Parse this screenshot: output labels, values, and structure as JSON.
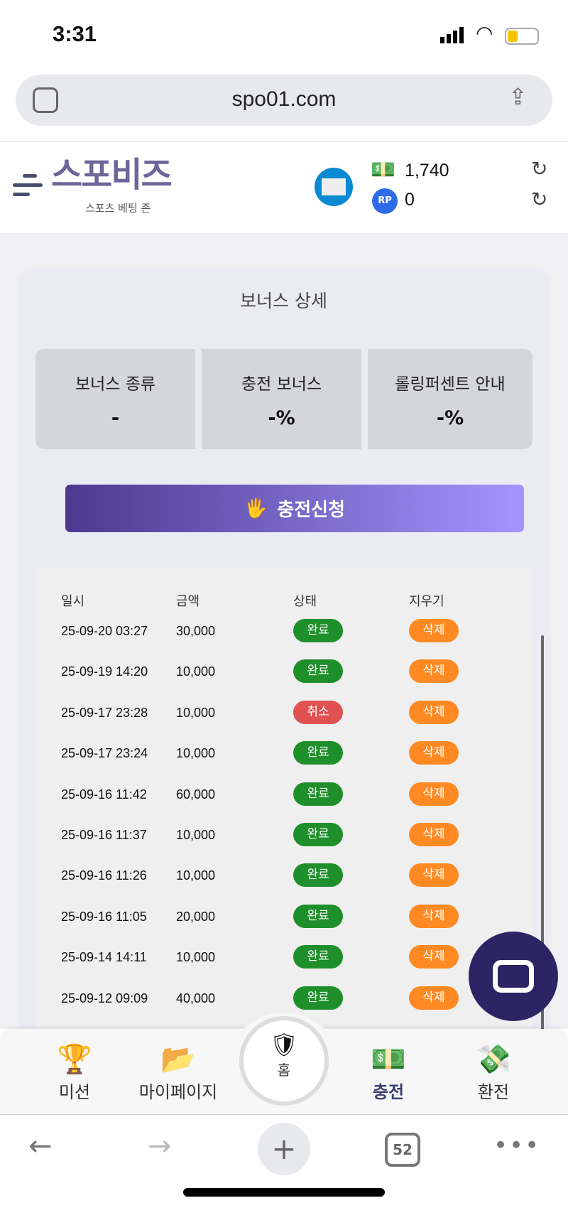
{
  "status_bar": {
    "time": "3:31"
  },
  "browser": {
    "url": "spo01.com",
    "tab_count": "52"
  },
  "header": {
    "logo_main": "스포비즈",
    "logo_sub": "스포츠 베팅 존",
    "money": "1,740",
    "rp": "0",
    "rp_badge": "RP"
  },
  "bonus": {
    "title": "보너스 상세",
    "boxes": [
      {
        "label": "보너스 종류",
        "value": "-"
      },
      {
        "label": "충전 보너스",
        "value": "-%"
      },
      {
        "label": "롤링퍼센트 안내",
        "value": "-%"
      }
    ]
  },
  "charge_button": "충전신청",
  "table": {
    "headers": [
      "일시",
      "금액",
      "상태",
      "지우기"
    ],
    "rows": [
      {
        "date": "25-09-20 03:27",
        "amount": "30,000",
        "status": "완료",
        "delete": "삭제"
      },
      {
        "date": "25-09-19 14:20",
        "amount": "10,000",
        "status": "완료",
        "delete": "삭제"
      },
      {
        "date": "25-09-17 23:28",
        "amount": "10,000",
        "status": "취소",
        "delete": "삭제"
      },
      {
        "date": "25-09-17 23:24",
        "amount": "10,000",
        "status": "완료",
        "delete": "삭제"
      },
      {
        "date": "25-09-16 11:42",
        "amount": "60,000",
        "status": "완료",
        "delete": "삭제"
      },
      {
        "date": "25-09-16 11:37",
        "amount": "10,000",
        "status": "완료",
        "delete": "삭제"
      },
      {
        "date": "25-09-16 11:26",
        "amount": "10,000",
        "status": "완료",
        "delete": "삭제"
      },
      {
        "date": "25-09-16 11:05",
        "amount": "20,000",
        "status": "완료",
        "delete": "삭제"
      },
      {
        "date": "25-09-14 14:11",
        "amount": "10,000",
        "status": "완료",
        "delete": "삭제"
      },
      {
        "date": "25-09-12 09:09",
        "amount": "40,000",
        "status": "완료",
        "delete": "삭제"
      }
    ]
  },
  "colors": {
    "done": "#1e8f2a",
    "cancel": "#e05151",
    "delete": "#ff8a24",
    "accent": "#2d2466"
  },
  "bottom_nav": {
    "items": [
      "미션",
      "마이페이지",
      "충전",
      "환전"
    ],
    "home": "홈"
  }
}
